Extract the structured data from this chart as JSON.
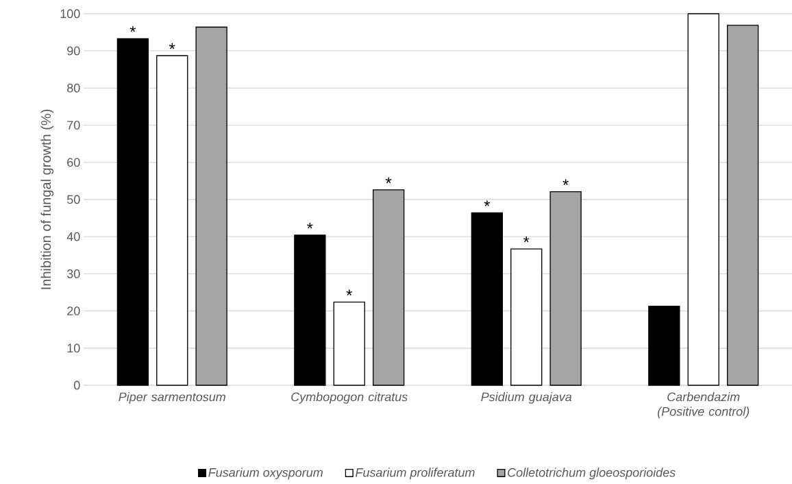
{
  "chart_data": {
    "type": "bar",
    "ylabel": "Inhibition of fungal growth (%)",
    "categories": [
      "Piper sarmentosum",
      "Cymbopogon citratus",
      "Psidium guajava",
      "Carbendazim (Positive control)"
    ],
    "series": [
      {
        "name": "Fusarium oxysporum",
        "color": "#000000",
        "values": [
          93.3,
          40.4,
          46.4,
          21.3
        ],
        "value_labels": [
          "*",
          "*",
          "*",
          null
        ]
      },
      {
        "name": "Fusarium proliferatum",
        "color": "#ffffff",
        "values": [
          88.7,
          22.4,
          36.7,
          100
        ],
        "value_labels": [
          "*",
          "*",
          "*",
          null
        ]
      },
      {
        "name": "Colletotrichum gloeosporioides",
        "color": "#a5a5a5",
        "values": [
          96.4,
          52.6,
          52.1,
          96.9
        ],
        "value_labels": [
          null,
          "*",
          "*",
          null
        ]
      }
    ],
    "ylim": [
      0,
      100
    ],
    "yticks": [
      0,
      10,
      20,
      30,
      40,
      50,
      60,
      70,
      80,
      90,
      100
    ],
    "grid": "y",
    "legend": "bottom"
  }
}
